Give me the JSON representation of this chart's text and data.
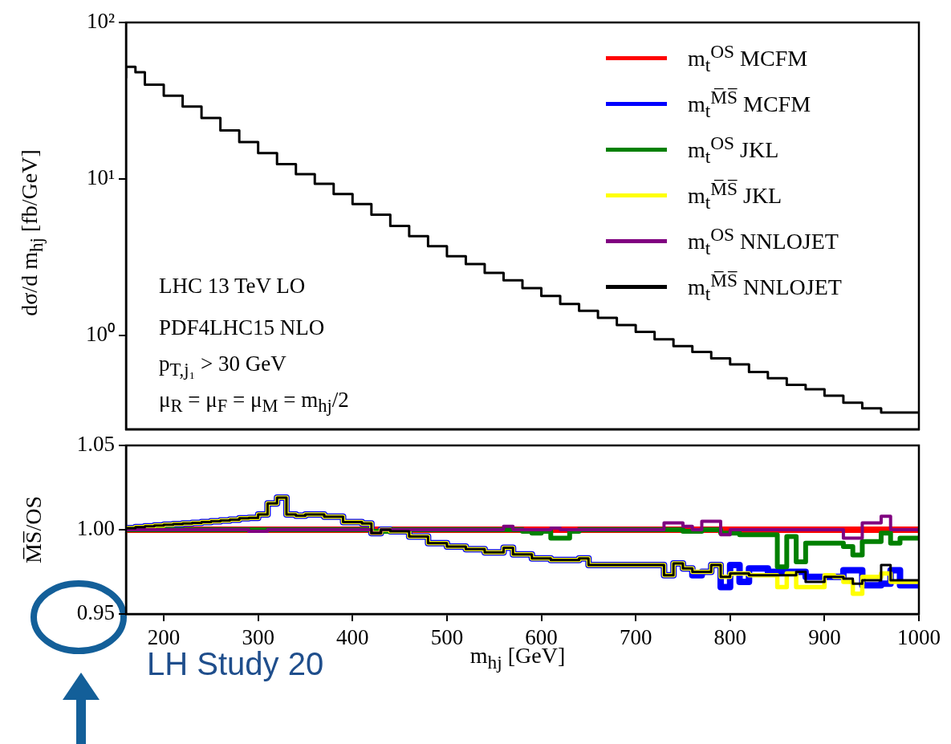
{
  "chart_data": [
    {
      "type": "step",
      "ylabel": "dσ/d m$_{hj}$ [fb/GeV]",
      "log": true,
      "legend": "top right",
      "marker": "none",
      "tick_labels": "y",
      "annotations": [
        "LHC 13 TeV LO",
        "PDF4LHC15 NLO",
        "p$_{T,j₁}$ > 30 GeV",
        "μ$_{R}$ = μ$_{F}$ = μ$_{M}$ = m$_{hj}$/2"
      ],
      "xlim": [
        160,
        1000
      ],
      "ylim": [
        0.25,
        100
      ],
      "yticks": [
        {
          "value": 100,
          "label": "10²"
        },
        {
          "value": 10,
          "label": "10¹"
        },
        {
          "value": 1,
          "label": "10⁰"
        }
      ],
      "x": [
        160,
        170,
        180,
        200,
        220,
        240,
        260,
        280,
        300,
        320,
        340,
        360,
        380,
        400,
        420,
        440,
        460,
        480,
        500,
        520,
        540,
        560,
        580,
        600,
        620,
        640,
        660,
        680,
        700,
        720,
        740,
        760,
        780,
        800,
        820,
        840,
        860,
        880,
        900,
        920,
        940,
        960,
        980,
        1000
      ],
      "series": [
        {
          "name": "m$_{t}$$^{OS}$ MCFM",
          "color": "#ff0000",
          "values": [
            null,
            null,
            null,
            null,
            null,
            null,
            null,
            null,
            null,
            null,
            null,
            null,
            null,
            null,
            null,
            null,
            null,
            null,
            null,
            null,
            null,
            null,
            null,
            null,
            null,
            null,
            null,
            null,
            null,
            null,
            null,
            null,
            null,
            null,
            null,
            null,
            null,
            null,
            null,
            null,
            null,
            null,
            null,
            null
          ]
        },
        {
          "name": "m$_{t}$$^{M̅S̅}$ MCFM",
          "color": "#0000ff",
          "values": [
            null,
            null,
            null,
            null,
            null,
            null,
            null,
            null,
            null,
            null,
            null,
            null,
            null,
            null,
            null,
            null,
            null,
            null,
            null,
            null,
            null,
            null,
            null,
            null,
            null,
            null,
            null,
            null,
            null,
            null,
            null,
            null,
            null,
            null,
            null,
            null,
            null,
            null,
            null,
            null,
            null,
            null,
            null,
            null
          ]
        },
        {
          "name": "m$_{t}$$^{OS}$ JKL",
          "color": "#008000",
          "values": [
            null,
            null,
            null,
            null,
            null,
            null,
            null,
            null,
            null,
            null,
            null,
            null,
            null,
            null,
            null,
            null,
            null,
            null,
            null,
            null,
            null,
            null,
            null,
            null,
            null,
            null,
            null,
            null,
            null,
            null,
            null,
            null,
            null,
            null,
            null,
            null,
            null,
            null,
            null,
            null,
            null,
            null,
            null,
            null
          ]
        },
        {
          "name": "m$_{t}$$^{M̅S̅}$ JKL",
          "color": "#ffff00",
          "values": [
            null,
            null,
            null,
            null,
            null,
            null,
            null,
            null,
            null,
            null,
            null,
            null,
            null,
            null,
            null,
            null,
            null,
            null,
            null,
            null,
            null,
            null,
            null,
            null,
            null,
            null,
            null,
            null,
            null,
            null,
            null,
            null,
            null,
            null,
            null,
            null,
            null,
            null,
            null,
            null,
            null,
            null,
            null,
            null
          ]
        },
        {
          "name": "m$_{t}$$^{OS}$ NNLOJET",
          "color": "#800080",
          "values": [
            null,
            null,
            null,
            null,
            null,
            null,
            null,
            null,
            null,
            null,
            null,
            null,
            null,
            null,
            null,
            null,
            null,
            null,
            null,
            null,
            null,
            null,
            null,
            null,
            null,
            null,
            null,
            null,
            null,
            null,
            null,
            null,
            null,
            null,
            null,
            null,
            null,
            null,
            null,
            null,
            null,
            null,
            null,
            null
          ]
        },
        {
          "name": "m$_{t}$$^{M̅S̅}$ NNLOJET",
          "color": "#000000",
          "values": [
            44,
            52,
            48,
            40,
            34,
            29,
            24.5,
            20.4,
            17.2,
            14.6,
            12.4,
            10.7,
            9.3,
            8.0,
            6.9,
            5.9,
            5.0,
            4.3,
            3.7,
            3.2,
            2.85,
            2.5,
            2.24,
            2.0,
            1.78,
            1.58,
            1.43,
            1.29,
            1.16,
            1.05,
            0.94,
            0.85,
            0.78,
            0.71,
            0.65,
            0.58,
            0.53,
            0.48,
            0.45,
            0.41,
            0.37,
            0.34,
            0.32,
            0.32
          ]
        }
      ]
    },
    {
      "type": "step",
      "xlabel": "m$_{hj}$ [GeV]",
      "ylabel": "M̅S̅/OS",
      "marker": "none",
      "annotations": [
        "LH Study 20"
      ],
      "xlim": [
        160,
        1000
      ],
      "xticks": [
        200,
        300,
        400,
        500,
        600,
        700,
        800,
        900,
        1000
      ],
      "ylim": [
        0.95,
        1.05
      ],
      "yticks": [
        0.95,
        {
          "value": 1,
          "label": "1.00"
        },
        1.05
      ],
      "x": [
        160,
        170,
        180,
        190,
        200,
        210,
        220,
        230,
        240,
        250,
        260,
        270,
        280,
        290,
        300,
        310,
        320,
        330,
        340,
        350,
        360,
        370,
        380,
        390,
        400,
        410,
        420,
        430,
        440,
        450,
        460,
        470,
        480,
        490,
        500,
        510,
        520,
        530,
        540,
        550,
        560,
        570,
        580,
        590,
        600,
        610,
        620,
        630,
        640,
        650,
        660,
        670,
        680,
        690,
        700,
        710,
        720,
        730,
        740,
        750,
        760,
        770,
        780,
        790,
        800,
        810,
        820,
        830,
        840,
        850,
        860,
        870,
        880,
        890,
        900,
        910,
        920,
        930,
        940,
        950,
        960,
        970,
        980,
        990,
        1000
      ],
      "series": [
        {
          "color": "#ff0000",
          "values": [
            1,
            1,
            1,
            1,
            1,
            1,
            1,
            1,
            1,
            1,
            1,
            1,
            1,
            1,
            1,
            1,
            1,
            1,
            1,
            1,
            1,
            1,
            1,
            1,
            1,
            1,
            1,
            1,
            1,
            1,
            1,
            1,
            1,
            1,
            1,
            1,
            1,
            1,
            1,
            1,
            1,
            1,
            1,
            1,
            1,
            1,
            1,
            1,
            1,
            1,
            1,
            1,
            1,
            1,
            1,
            1,
            1,
            1,
            1,
            1,
            1,
            1,
            1,
            1,
            1,
            1,
            1,
            1,
            1,
            1,
            1,
            1,
            1,
            1,
            1,
            1,
            1,
            1,
            1,
            1,
            1,
            1,
            1,
            1,
            1
          ]
        },
        {
          "color": "#0000ff",
          "values": [
            1.0,
            1.001,
            1.0015,
            1.002,
            1.0025,
            1.003,
            1.0033,
            1.0037,
            1.004,
            1.0045,
            1.005,
            1.0055,
            1.006,
            1.0068,
            1.007,
            1.009,
            1.0156,
            1.019,
            1.009,
            1.0083,
            1.009,
            1.009,
            1.0077,
            1.0077,
            1.0045,
            1.0045,
            1.0037,
            0.998,
            1.0,
            0.999,
            0.999,
            0.996,
            0.996,
            0.992,
            0.992,
            0.99,
            0.99,
            0.9885,
            0.9885,
            0.9866,
            0.9866,
            0.9893,
            0.9854,
            0.9854,
            0.983,
            0.983,
            0.982,
            0.982,
            0.982,
            0.983,
            0.979,
            0.979,
            0.979,
            0.979,
            0.979,
            0.979,
            0.979,
            0.979,
            0.973,
            0.98,
            0.977,
            0.973,
            0.975,
            0.979,
            0.966,
            0.979,
            0.969,
            0.977,
            0.977,
            0.975,
            0.975,
            0.975,
            0.975,
            0.972,
            0.972,
            0.972,
            0.972,
            0.976,
            0.976,
            0.967,
            0.967,
            0.968,
            0.976,
            0.967,
            0.967
          ]
        },
        {
          "color": "#008000",
          "values": [
            1,
            1,
            1,
            1,
            1,
            1,
            1,
            1,
            1,
            1,
            1,
            1,
            1,
            1,
            1,
            1,
            1,
            1,
            1,
            1,
            1,
            1,
            1,
            1,
            1,
            1,
            1,
            0.999,
            0.999,
            1,
            1,
            1,
            1,
            1,
            1,
            1,
            1,
            1,
            1,
            1,
            1,
            1,
            1,
            0.999,
            0.998,
            0.999,
            0.995,
            0.995,
            0.999,
            1,
            1,
            1,
            1,
            1,
            1,
            1,
            1,
            1,
            1,
            1,
            0.999,
            0.999,
            1,
            1,
            0.998,
            0.998,
            0.997,
            0.997,
            0.997,
            0.997,
            0.978,
            0.996,
            0.981,
            0.992,
            0.992,
            0.992,
            0.992,
            0.99,
            0.985,
            0.993,
            0.993,
            0.998,
            0.992,
            0.995,
            0.995
          ]
        },
        {
          "color": "#ffff00",
          "values": [
            1.0,
            1.001,
            1.0015,
            1.002,
            1.0025,
            1.003,
            1.0033,
            1.0037,
            1.004,
            1.0045,
            1.005,
            1.0055,
            1.006,
            1.0068,
            1.007,
            1.009,
            1.0156,
            1.019,
            1.009,
            1.0083,
            1.009,
            1.009,
            1.0077,
            1.0077,
            1.0045,
            1.0045,
            1.0037,
            0.998,
            1.0,
            0.999,
            0.999,
            0.996,
            0.996,
            0.992,
            0.992,
            0.99,
            0.99,
            0.9885,
            0.9885,
            0.9866,
            0.9866,
            0.9893,
            0.9854,
            0.9854,
            0.983,
            0.983,
            0.982,
            0.982,
            0.982,
            0.983,
            0.979,
            0.979,
            0.979,
            0.979,
            0.979,
            0.979,
            0.979,
            0.979,
            0.973,
            0.98,
            0.977,
            0.975,
            0.975,
            0.979,
            0.972,
            0.974,
            0.974,
            0.973,
            0.973,
            0.973,
            0.966,
            0.974,
            0.966,
            0.966,
            0.966,
            0.973,
            0.972,
            0.969,
            0.962,
            0.972,
            0.972,
            0.974,
            0.969,
            0.969,
            0.969
          ]
        },
        {
          "color": "#800080",
          "values": [
            1,
            1,
            1,
            1,
            1,
            1,
            1,
            1,
            1,
            1,
            1,
            1,
            1,
            1,
            0.999,
            0.999,
            1,
            1,
            1,
            1,
            1,
            1,
            1,
            1,
            1,
            1,
            1,
            0.998,
            1,
            1,
            1,
            1,
            1,
            1,
            1,
            1,
            1,
            1,
            1,
            1,
            1,
            1.002,
            1,
            1,
            1,
            1,
            1.001,
            1,
            1,
            1,
            1,
            1,
            1,
            1,
            1,
            1,
            1,
            1,
            1.004,
            1.004,
            1.002,
            1,
            1.005,
            1.005,
            0.997,
            1,
            1,
            1,
            1,
            1,
            1,
            1,
            1,
            1,
            1,
            1,
            1,
            0.995,
            0.995,
            1.004,
            1.004,
            1.008,
            1,
            1,
            1
          ]
        },
        {
          "color": "#000000",
          "values": [
            1.0,
            1.001,
            1.0015,
            1.002,
            1.0025,
            1.003,
            1.0033,
            1.0037,
            1.004,
            1.0045,
            1.005,
            1.0055,
            1.006,
            1.0068,
            1.007,
            1.009,
            1.0156,
            1.019,
            1.009,
            1.0083,
            1.009,
            1.009,
            1.0077,
            1.0077,
            1.0045,
            1.0045,
            1.0037,
            0.998,
            1.0,
            0.999,
            0.999,
            0.996,
            0.996,
            0.992,
            0.992,
            0.99,
            0.99,
            0.9885,
            0.9885,
            0.9866,
            0.9866,
            0.9893,
            0.9854,
            0.9854,
            0.983,
            0.983,
            0.982,
            0.982,
            0.982,
            0.983,
            0.979,
            0.979,
            0.979,
            0.979,
            0.979,
            0.979,
            0.979,
            0.979,
            0.973,
            0.98,
            0.977,
            0.975,
            0.975,
            0.979,
            0.972,
            0.974,
            0.974,
            0.973,
            0.973,
            0.973,
            0.973,
            0.973,
            0.975,
            0.969,
            0.969,
            0.972,
            0.972,
            0.971,
            0.968,
            0.97,
            0.97,
            0.979,
            0.97,
            0.97,
            0.97
          ]
        }
      ]
    }
  ]
}
